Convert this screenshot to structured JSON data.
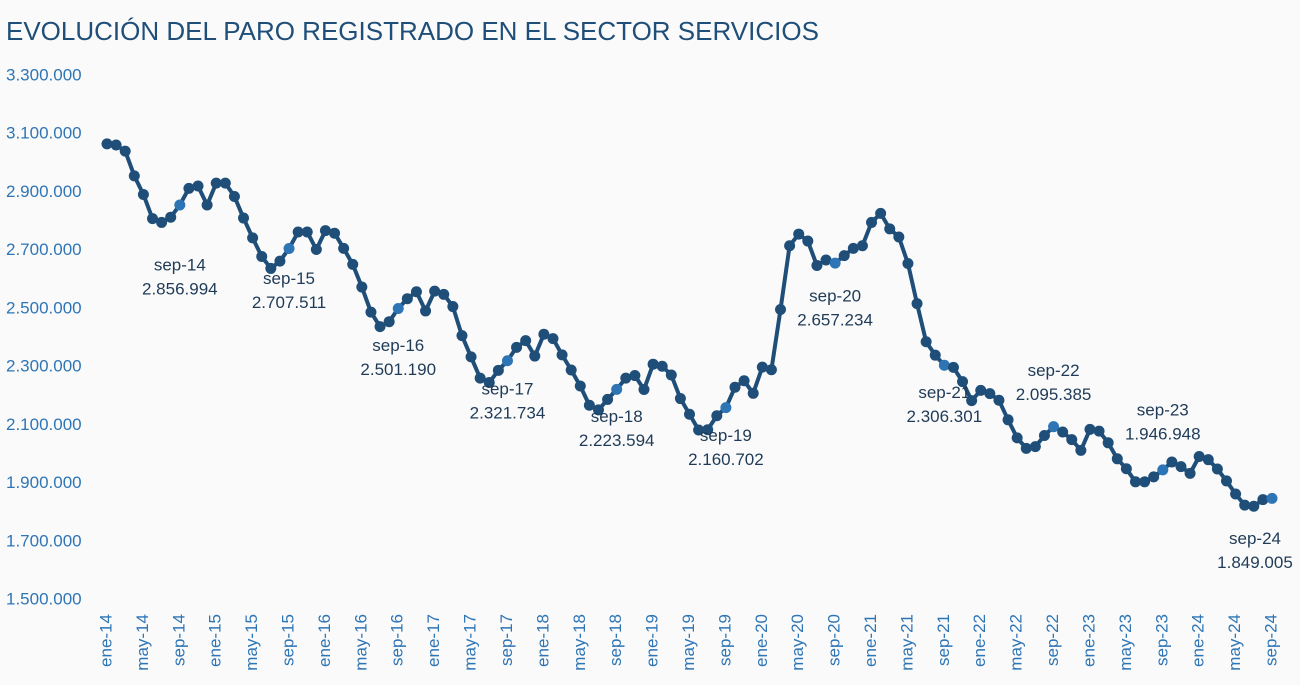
{
  "chart_data": {
    "type": "line",
    "title": "EVOLUCIÓN DEL PARO REGISTRADO EN EL SECTOR SERVICIOS",
    "categories": [
      "ene-14",
      null,
      null,
      null,
      "may-14",
      null,
      null,
      null,
      "sep-14",
      null,
      null,
      null,
      "ene-15",
      null,
      null,
      null,
      "may-15",
      null,
      null,
      null,
      "sep-15",
      null,
      null,
      null,
      "ene-16",
      null,
      null,
      null,
      "may-16",
      null,
      null,
      null,
      "sep-16",
      null,
      null,
      null,
      "ene-17",
      null,
      null,
      null,
      "may-17",
      null,
      null,
      null,
      "sep-17",
      null,
      null,
      null,
      "ene-18",
      null,
      null,
      null,
      "may-18",
      null,
      null,
      null,
      "sep-18",
      null,
      null,
      null,
      "ene-19",
      null,
      null,
      null,
      "may-19",
      null,
      null,
      null,
      "sep-19",
      null,
      null,
      null,
      "ene-20",
      null,
      null,
      null,
      "may-20",
      null,
      null,
      null,
      "sep-20",
      null,
      null,
      null,
      "ene-21",
      null,
      null,
      null,
      "may-21",
      null,
      null,
      null,
      "sep-21",
      null,
      null,
      null,
      "ene-22",
      null,
      null,
      null,
      "may-22",
      null,
      null,
      null,
      "sep-22",
      null,
      null,
      null,
      "ene-23",
      null,
      null,
      null,
      "may-23",
      null,
      null,
      null,
      "sep-23",
      null,
      null,
      null,
      "ene-24",
      null,
      null,
      null,
      "may-24",
      null,
      null,
      null,
      "sep-24"
    ],
    "values": [
      3067000,
      3063000,
      3042000,
      2957000,
      2893000,
      2810000,
      2797000,
      2815000,
      2856994,
      2914000,
      2922000,
      2857000,
      2932000,
      2932000,
      2886000,
      2812000,
      2744000,
      2680000,
      2639000,
      2664000,
      2707511,
      2764000,
      2764000,
      2704000,
      2769000,
      2760000,
      2708000,
      2653000,
      2575000,
      2489000,
      2439000,
      2456000,
      2501190,
      2535000,
      2559000,
      2493000,
      2561000,
      2550000,
      2508000,
      2408000,
      2335000,
      2262000,
      2247000,
      2289000,
      2321734,
      2368000,
      2391000,
      2338000,
      2413000,
      2398000,
      2342000,
      2290000,
      2235000,
      2169000,
      2153000,
      2189000,
      2223594,
      2262000,
      2271000,
      2223000,
      2310000,
      2303000,
      2273000,
      2192000,
      2138000,
      2084000,
      2085000,
      2133000,
      2160702,
      2231000,
      2253000,
      2210000,
      2300000,
      2291000,
      2498000,
      2717000,
      2757000,
      2733000,
      2649000,
      2668000,
      2657234,
      2683000,
      2708000,
      2717000,
      2797000,
      2828000,
      2775000,
      2747000,
      2656000,
      2518000,
      2387000,
      2341000,
      2306301,
      2299000,
      2250000,
      2185000,
      2220000,
      2209000,
      2186000,
      2119000,
      2057000,
      2021000,
      2027000,
      2065000,
      2095385,
      2077000,
      2051000,
      2014000,
      2086000,
      2080000,
      2040000,
      1985000,
      1951000,
      1906000,
      1906000,
      1923000,
      1946948,
      1974000,
      1958000,
      1935000,
      1993000,
      1982000,
      1950000,
      1909000,
      1864000,
      1826000,
      1822000,
      1845000,
      1849005
    ],
    "value_labels": [
      null,
      null,
      null,
      null,
      null,
      null,
      null,
      null,
      "2.856.994",
      null,
      null,
      null,
      null,
      null,
      null,
      null,
      null,
      null,
      null,
      null,
      "2.707.511",
      null,
      null,
      null,
      null,
      null,
      null,
      null,
      null,
      null,
      null,
      null,
      "2.501.190",
      null,
      null,
      null,
      null,
      null,
      null,
      null,
      null,
      null,
      null,
      null,
      "2.321.734",
      null,
      null,
      null,
      null,
      null,
      null,
      null,
      null,
      null,
      null,
      null,
      "2.223.594",
      null,
      null,
      null,
      null,
      null,
      null,
      null,
      null,
      null,
      null,
      null,
      "2.160.702",
      null,
      null,
      null,
      null,
      null,
      null,
      null,
      null,
      null,
      null,
      null,
      "2.657.234",
      null,
      null,
      null,
      null,
      null,
      null,
      null,
      null,
      null,
      null,
      null,
      "2.306.301",
      null,
      null,
      null,
      null,
      null,
      null,
      null,
      null,
      null,
      null,
      null,
      "2.095.385",
      null,
      null,
      null,
      null,
      null,
      null,
      null,
      null,
      null,
      null,
      null,
      "1.946.948",
      null,
      null,
      null,
      null,
      null,
      null,
      null,
      null,
      null,
      null,
      null,
      "1.849.005"
    ],
    "color": "#1f4e79",
    "highlight_color": "#2e75b6",
    "ylim": [
      1500000,
      3300000
    ],
    "yticks": [
      {
        "value": 1500000,
        "label": "1.500.000"
      },
      {
        "value": 1700000,
        "label": "1.700.000"
      },
      {
        "value": 1900000,
        "label": "1.900.000"
      },
      {
        "value": 2100000,
        "label": "2.100.000"
      },
      {
        "value": 2300000,
        "label": "2.300.000"
      },
      {
        "value": 2500000,
        "label": "2.500.000"
      },
      {
        "value": 2700000,
        "label": "2.700.000"
      },
      {
        "value": 2900000,
        "label": "2.900.000"
      },
      {
        "value": 3100000,
        "label": "3.100.000"
      },
      {
        "value": 3300000,
        "label": "3.300.000"
      }
    ],
    "grid": false
  }
}
